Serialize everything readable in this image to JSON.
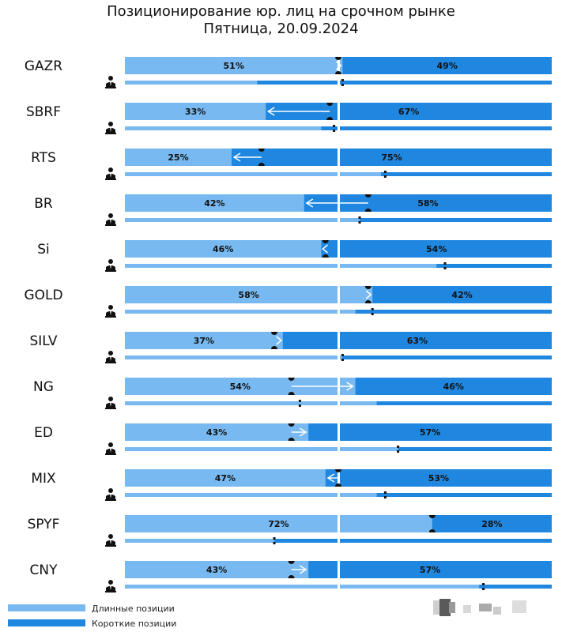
{
  "title": [
    "Позиционирование юр. лиц на срочном рынке",
    "Пятница, 20.09.2024"
  ],
  "colors": {
    "long": "#77b9f0",
    "short": "#1f87e0",
    "marker": "#111111",
    "arrow": "#ffffff",
    "divider": "#ffffff"
  },
  "legend": [
    {
      "label": "Длинные позиции",
      "color": "#77b9f0"
    },
    {
      "label": "Короткие позиции",
      "color": "#1f87e0"
    }
  ],
  "icons": {
    "person": "person-icon",
    "watermark": "blurred-watermark"
  },
  "chart_data": {
    "type": "bar",
    "orientation": "horizontal-stacked-100",
    "categories": [
      "GAZR",
      "SBRF",
      "RTS",
      "BR",
      "Si",
      "GOLD",
      "SILV",
      "NG",
      "ED",
      "MIX",
      "SPYF",
      "CNY"
    ],
    "series": [
      {
        "name": "Длинные позиции",
        "values": [
          51,
          33,
          25,
          42,
          46,
          58,
          37,
          54,
          43,
          47,
          72,
          43
        ]
      },
      {
        "name": "Короткие позиции",
        "values": [
          49,
          67,
          75,
          58,
          54,
          42,
          63,
          46,
          57,
          53,
          28,
          57
        ]
      }
    ],
    "previous_long": [
      50,
      48,
      32,
      57,
      47,
      57,
      35,
      39,
      39,
      50,
      72,
      39
    ],
    "individuals_long": [
      31,
      46,
      60,
      55,
      73,
      54,
      51,
      59,
      64,
      59,
      35,
      83
    ],
    "individuals_marker": [
      51,
      49,
      61,
      55,
      75,
      58,
      51,
      41,
      64,
      61,
      35,
      84
    ],
    "labels_format": "{v}%",
    "xlim": [
      0,
      100
    ],
    "legend_position": "bottom-left"
  }
}
